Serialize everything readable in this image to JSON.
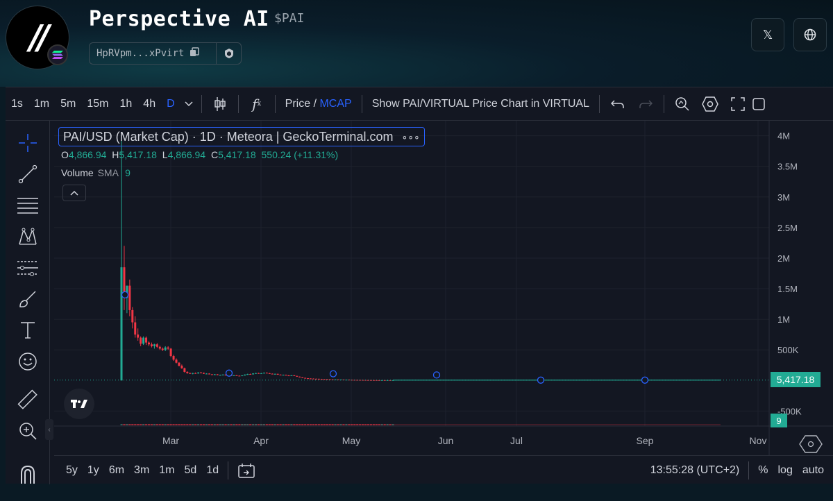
{
  "header": {
    "title": "Perspective AI",
    "ticker": "$PAI",
    "address": "HpRVpm...xPvirt",
    "logo_text": "//",
    "x_icon": "x-logo-icon",
    "globe_icon": "globe-icon"
  },
  "toolbar": {
    "intervals": [
      "1s",
      "1m",
      "5m",
      "15m",
      "1h",
      "4h",
      "D"
    ],
    "active_interval": "D",
    "price_label": "Price",
    "slash": "/",
    "mcap_label": "MCAP",
    "show_virtual_label": "Show PAI/VIRTUAL Price Chart in VIRTUAL",
    "fx_label": "f"
  },
  "legend": {
    "title": "PAI/USD (Market Cap) · 1D · Meteora | GeckoTerminal.com",
    "more": "∘∘∘",
    "o_label": "O",
    "o_value": "4,866.94",
    "h_label": "H",
    "h_value": "5,417.18",
    "l_label": "L",
    "l_value": "4,866.94",
    "c_label": "C",
    "c_value": "5,417.18",
    "change": "550.24 (+11.31%)",
    "volume_label": "Volume",
    "sma_label": "SMA",
    "sma_value": "9"
  },
  "price_axis": {
    "labels": [
      "4M",
      "3.5M",
      "3M",
      "2.5M",
      "2M",
      "1.5M",
      "1M",
      "500K",
      "-500K"
    ],
    "current_price": "5,417.18",
    "volume_tag": "9"
  },
  "time_axis": {
    "labels": [
      "Mar",
      "Apr",
      "May",
      "Jun",
      "Jul",
      "Sep",
      "Nov"
    ]
  },
  "bottom_bar": {
    "ranges": [
      "5y",
      "1y",
      "6m",
      "3m",
      "1m",
      "5d",
      "1d"
    ],
    "time": "13:55:28 (UTC+2)",
    "percent": "%",
    "log": "log",
    "auto": "auto"
  },
  "colors": {
    "up": "#22ab94",
    "down": "#f23645",
    "accent": "#2962ff",
    "background": "#131722"
  },
  "chart_data": {
    "type": "candlestick",
    "title": "PAI/USD (Market Cap) · 1D · Meteora | GeckoTerminal.com",
    "ylim": [
      -700000,
      4200000
    ],
    "candles": [
      {
        "o": 0,
        "h": 4000000,
        "l": 0,
        "c": 1850000
      },
      {
        "o": 1850000,
        "h": 2200000,
        "l": 1150000,
        "c": 1350000
      },
      {
        "o": 1350000,
        "h": 1550000,
        "l": 1100000,
        "c": 1550000
      },
      {
        "o": 1550000,
        "h": 1650000,
        "l": 1050000,
        "c": 1150000
      },
      {
        "o": 1150000,
        "h": 1200000,
        "l": 850000,
        "c": 950000
      },
      {
        "o": 950000,
        "h": 1050000,
        "l": 700000,
        "c": 750000
      },
      {
        "o": 750000,
        "h": 850000,
        "l": 650000,
        "c": 700000
      },
      {
        "o": 700000,
        "h": 720000,
        "l": 560000,
        "c": 600000
      },
      {
        "o": 600000,
        "h": 720000,
        "l": 580000,
        "c": 700000
      },
      {
        "o": 700000,
        "h": 720000,
        "l": 580000,
        "c": 620000
      },
      {
        "o": 620000,
        "h": 640000,
        "l": 560000,
        "c": 590000
      },
      {
        "o": 590000,
        "h": 620000,
        "l": 540000,
        "c": 560000
      },
      {
        "o": 560000,
        "h": 600000,
        "l": 520000,
        "c": 590000
      },
      {
        "o": 590000,
        "h": 610000,
        "l": 530000,
        "c": 550000
      },
      {
        "o": 550000,
        "h": 570000,
        "l": 500000,
        "c": 520000
      },
      {
        "o": 520000,
        "h": 540000,
        "l": 480000,
        "c": 500000
      },
      {
        "o": 500000,
        "h": 560000,
        "l": 480000,
        "c": 540000
      },
      {
        "o": 540000,
        "h": 560000,
        "l": 500000,
        "c": 520000
      },
      {
        "o": 520000,
        "h": 530000,
        "l": 380000,
        "c": 400000
      },
      {
        "o": 400000,
        "h": 420000,
        "l": 320000,
        "c": 340000
      },
      {
        "o": 340000,
        "h": 360000,
        "l": 280000,
        "c": 290000
      },
      {
        "o": 290000,
        "h": 300000,
        "l": 230000,
        "c": 240000
      },
      {
        "o": 240000,
        "h": 260000,
        "l": 190000,
        "c": 200000
      },
      {
        "o": 200000,
        "h": 210000,
        "l": 130000,
        "c": 140000
      },
      {
        "o": 140000,
        "h": 150000,
        "l": 110000,
        "c": 120000
      },
      {
        "o": 120000,
        "h": 130000,
        "l": 105000,
        "c": 110000
      },
      {
        "o": 110000,
        "h": 125000,
        "l": 100000,
        "c": 120000
      },
      {
        "o": 120000,
        "h": 130000,
        "l": 110000,
        "c": 115000
      },
      {
        "o": 115000,
        "h": 135000,
        "l": 110000,
        "c": 130000
      },
      {
        "o": 130000,
        "h": 140000,
        "l": 120000,
        "c": 125000
      },
      {
        "o": 125000,
        "h": 130000,
        "l": 105000,
        "c": 110000
      },
      {
        "o": 110000,
        "h": 118000,
        "l": 100000,
        "c": 112000
      },
      {
        "o": 112000,
        "h": 118000,
        "l": 98000,
        "c": 100000
      },
      {
        "o": 100000,
        "h": 105000,
        "l": 90000,
        "c": 95000
      },
      {
        "o": 95000,
        "h": 105000,
        "l": 88000,
        "c": 100000
      },
      {
        "o": 100000,
        "h": 104000,
        "l": 85000,
        "c": 88000
      },
      {
        "o": 88000,
        "h": 95000,
        "l": 82000,
        "c": 90000
      },
      {
        "o": 90000,
        "h": 100000,
        "l": 84000,
        "c": 96000
      },
      {
        "o": 96000,
        "h": 98000,
        "l": 80000,
        "c": 82000
      },
      {
        "o": 82000,
        "h": 90000,
        "l": 76000,
        "c": 86000
      },
      {
        "o": 86000,
        "h": 92000,
        "l": 78000,
        "c": 80000
      },
      {
        "o": 80000,
        "h": 86000,
        "l": 74000,
        "c": 84000
      },
      {
        "o": 84000,
        "h": 88000,
        "l": 76000,
        "c": 78000
      },
      {
        "o": 78000,
        "h": 82000,
        "l": 70000,
        "c": 74000
      },
      {
        "o": 74000,
        "h": 85000,
        "l": 72000,
        "c": 82000
      },
      {
        "o": 82000,
        "h": 100000,
        "l": 78000,
        "c": 96000
      },
      {
        "o": 96000,
        "h": 110000,
        "l": 90000,
        "c": 105000
      },
      {
        "o": 105000,
        "h": 112000,
        "l": 95000,
        "c": 100000
      },
      {
        "o": 100000,
        "h": 118000,
        "l": 96000,
        "c": 115000
      },
      {
        "o": 115000,
        "h": 125000,
        "l": 108000,
        "c": 120000
      },
      {
        "o": 120000,
        "h": 126000,
        "l": 110000,
        "c": 114000
      },
      {
        "o": 114000,
        "h": 122000,
        "l": 108000,
        "c": 118000
      },
      {
        "o": 118000,
        "h": 130000,
        "l": 112000,
        "c": 126000
      },
      {
        "o": 126000,
        "h": 132000,
        "l": 115000,
        "c": 118000
      },
      {
        "o": 118000,
        "h": 124000,
        "l": 106000,
        "c": 110000
      },
      {
        "o": 110000,
        "h": 115000,
        "l": 100000,
        "c": 104000
      },
      {
        "o": 104000,
        "h": 112000,
        "l": 96000,
        "c": 108000
      },
      {
        "o": 108000,
        "h": 110000,
        "l": 92000,
        "c": 95000
      },
      {
        "o": 95000,
        "h": 100000,
        "l": 86000,
        "c": 90000
      },
      {
        "o": 90000,
        "h": 96000,
        "l": 84000,
        "c": 92000
      },
      {
        "o": 92000,
        "h": 95000,
        "l": 80000,
        "c": 82000
      },
      {
        "o": 82000,
        "h": 88000,
        "l": 76000,
        "c": 80000
      },
      {
        "o": 80000,
        "h": 86000,
        "l": 74000,
        "c": 84000
      },
      {
        "o": 84000,
        "h": 88000,
        "l": 72000,
        "c": 74000
      },
      {
        "o": 74000,
        "h": 78000,
        "l": 60000,
        "c": 62000
      },
      {
        "o": 62000,
        "h": 66000,
        "l": 48000,
        "c": 50000
      },
      {
        "o": 50000,
        "h": 54000,
        "l": 40000,
        "c": 42000
      },
      {
        "o": 42000,
        "h": 46000,
        "l": 34000,
        "c": 36000
      },
      {
        "o": 36000,
        "h": 38000,
        "l": 30000,
        "c": 32000
      },
      {
        "o": 32000,
        "h": 35000,
        "l": 28000,
        "c": 30000
      },
      {
        "o": 30000,
        "h": 33000,
        "l": 26000,
        "c": 28000
      },
      {
        "o": 28000,
        "h": 31000,
        "l": 24000,
        "c": 27000
      },
      {
        "o": 27000,
        "h": 30000,
        "l": 22000,
        "c": 24000
      },
      {
        "o": 24000,
        "h": 27000,
        "l": 20000,
        "c": 22000
      },
      {
        "o": 22000,
        "h": 25000,
        "l": 19000,
        "c": 21000
      },
      {
        "o": 21000,
        "h": 24000,
        "l": 18000,
        "c": 20000
      },
      {
        "o": 20000,
        "h": 22000,
        "l": 17000,
        "c": 18000
      },
      {
        "o": 18000,
        "h": 20000,
        "l": 15000,
        "c": 16000
      },
      {
        "o": 16000,
        "h": 19000,
        "l": 14000,
        "c": 17000
      },
      {
        "o": 17000,
        "h": 18000,
        "l": 13000,
        "c": 14000
      },
      {
        "o": 14000,
        "h": 16000,
        "l": 12000,
        "c": 15000
      },
      {
        "o": 15000,
        "h": 16000,
        "l": 11000,
        "c": 12000
      },
      {
        "o": 12000,
        "h": 14000,
        "l": 10000,
        "c": 13000
      },
      {
        "o": 13000,
        "h": 14000,
        "l": 10000,
        "c": 11000
      },
      {
        "o": 11000,
        "h": 12000,
        "l": 9000,
        "c": 10000
      },
      {
        "o": 10000,
        "h": 11000,
        "l": 8000,
        "c": 9500
      },
      {
        "o": 9500,
        "h": 10500,
        "l": 8000,
        "c": 9000
      },
      {
        "o": 9000,
        "h": 10000,
        "l": 7500,
        "c": 8500
      },
      {
        "o": 8500,
        "h": 9500,
        "l": 7000,
        "c": 8000
      },
      {
        "o": 8000,
        "h": 9000,
        "l": 6500,
        "c": 7500
      },
      {
        "o": 7500,
        "h": 8500,
        "l": 6000,
        "c": 7000
      },
      {
        "o": 7000,
        "h": 8000,
        "l": 5500,
        "c": 6500
      },
      {
        "o": 6500,
        "h": 7500,
        "l": 5000,
        "c": 6000
      },
      {
        "o": 6000,
        "h": 7000,
        "l": 4800,
        "c": 5500
      },
      {
        "o": 5500,
        "h": 6200,
        "l": 4800,
        "c": 5000
      },
      {
        "o": 5000,
        "h": 5800,
        "l": 4700,
        "c": 5300
      },
      {
        "o": 5300,
        "h": 5800,
        "l": 4800,
        "c": 4900
      },
      {
        "o": 4900,
        "h": 5500,
        "l": 4700,
        "c": 5200
      },
      {
        "o": 5200,
        "h": 5600,
        "l": 4800,
        "c": 4866.94
      },
      {
        "o": 4866.94,
        "h": 5417.18,
        "l": 4866.94,
        "c": 5417.18
      }
    ]
  }
}
